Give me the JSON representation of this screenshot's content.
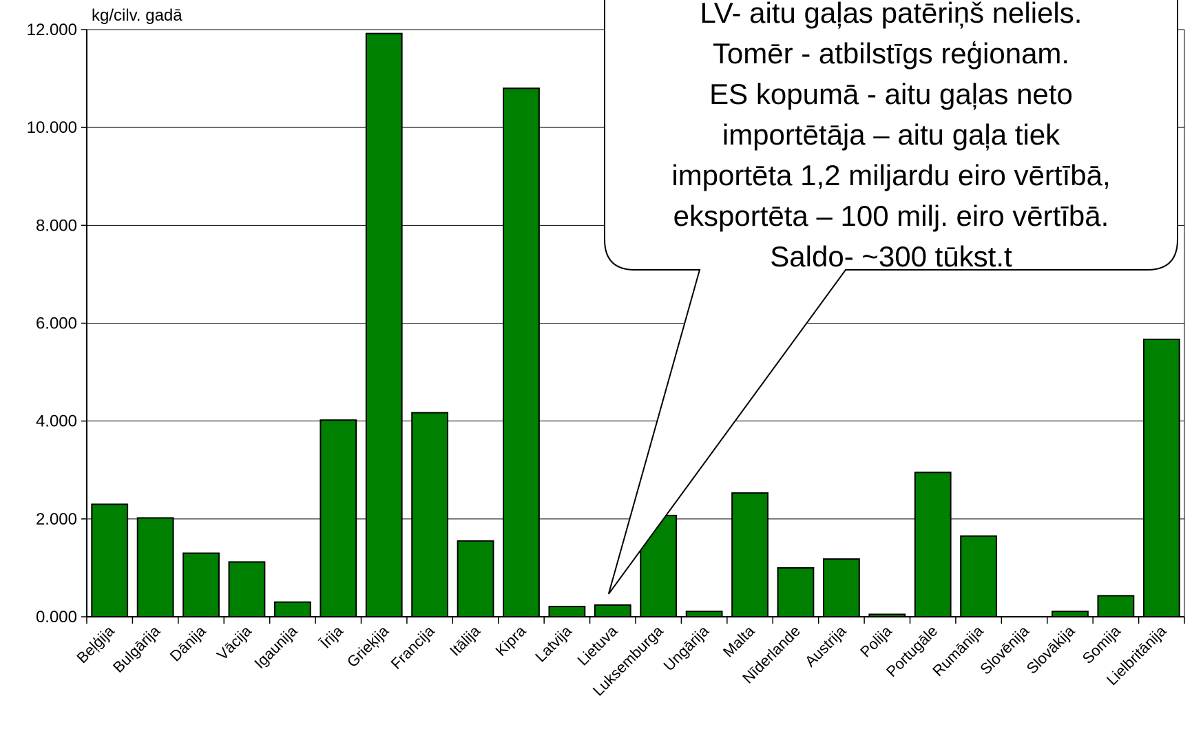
{
  "chart_data": {
    "type": "bar",
    "ylabel": "kg/cilv. gadā",
    "ylim": [
      0,
      12
    ],
    "y_ticks": [
      "0.000",
      "2.000",
      "4.000",
      "6.000",
      "8.000",
      "10.000",
      "12.000"
    ],
    "grid": true,
    "categories": [
      "Beļģija",
      "Bulgārija",
      "Dānija",
      "Vācija",
      "Igaunija",
      "Īrija",
      "Grieķija",
      "Francija",
      "Itālija",
      "Kipra",
      "Latvija",
      "Lietuva",
      "Luksemburga",
      "Ungārija",
      "Malta",
      "Nīderlande",
      "Austrija",
      "Polija",
      "Portugāle",
      "Rumānija",
      "Slovēnija",
      "Slovākija",
      "Somija",
      "Lielbritānija"
    ],
    "values": [
      2.3,
      2.02,
      1.3,
      1.12,
      0.3,
      4.02,
      11.92,
      4.17,
      1.55,
      10.8,
      0.21,
      0.24,
      2.07,
      0.11,
      2.53,
      1.0,
      1.18,
      0.05,
      2.95,
      1.65,
      0.0,
      0.11,
      0.43,
      5.67
    ],
    "bar_color": "#008000",
    "annotation": {
      "lines": [
        "LV- aitu gaļas patēriņš neliels.",
        "Tomēr -  atbilstīgs reģionam.",
        "ES kopumā - aitu gaļas neto",
        "importētāja – aitu gaļa tiek",
        "importēta 1,2 miljardu eiro vērtībā,",
        "eksportēta – 100 milj. eiro vērtībā.",
        "Saldo- ~300 tūkst.t"
      ],
      "points_to": "Lietuva"
    }
  }
}
